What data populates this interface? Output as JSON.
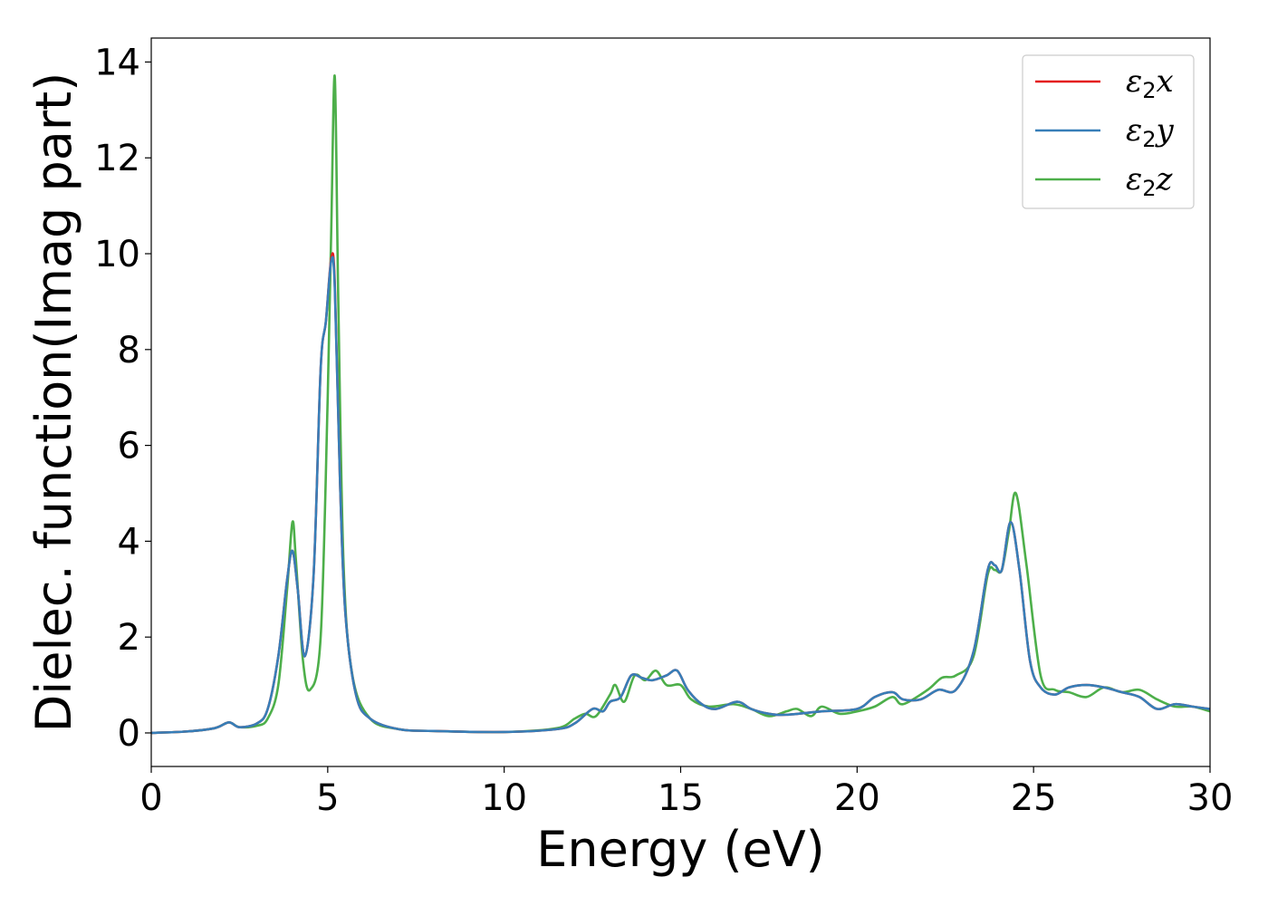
{
  "chart_data": {
    "type": "line",
    "xlabel": "Energy (eV)",
    "ylabel": "Dielec. function(Imag part)",
    "xlim": [
      0,
      30
    ],
    "ylim": [
      -0.7,
      14.5
    ],
    "xticks": [
      0,
      5,
      10,
      15,
      20,
      25,
      30
    ],
    "yticks": [
      0,
      2,
      4,
      6,
      8,
      10,
      12,
      14
    ],
    "grid": false,
    "legend_position": "top-right",
    "series": [
      {
        "name": "ε2x",
        "legend_base": "ε",
        "legend_sub": "2",
        "legend_suffix": "x",
        "color": "#e41a1c",
        "x": [
          0,
          1,
          1.8,
          2.2,
          2.5,
          3,
          3.3,
          3.6,
          3.85,
          4,
          4.15,
          4.35,
          4.6,
          4.8,
          4.95,
          5.1,
          5.2,
          5.35,
          5.5,
          5.8,
          6.2,
          7,
          8,
          10,
          11.5,
          12,
          12.5,
          12.8,
          13,
          13.3,
          13.6,
          13.9,
          14.2,
          14.6,
          14.9,
          15.2,
          15.6,
          16,
          16.6,
          17,
          17.5,
          18,
          19,
          20,
          20.5,
          21,
          21.3,
          21.8,
          22.3,
          22.8,
          23.3,
          23.7,
          23.9,
          24.1,
          24.35,
          24.6,
          24.9,
          25.2,
          25.6,
          26,
          26.5,
          27,
          27.5,
          28,
          28.5,
          29,
          29.5,
          30
        ],
        "y": [
          0,
          0.03,
          0.1,
          0.22,
          0.12,
          0.2,
          0.5,
          1.6,
          3.2,
          3.8,
          3.0,
          1.6,
          3.3,
          7.6,
          8.6,
          9.9,
          9.4,
          5.2,
          2.5,
          0.8,
          0.3,
          0.08,
          0.04,
          0.02,
          0.08,
          0.2,
          0.5,
          0.45,
          0.65,
          0.75,
          1.2,
          1.15,
          1.1,
          1.2,
          1.3,
          0.9,
          0.6,
          0.5,
          0.65,
          0.5,
          0.4,
          0.38,
          0.45,
          0.5,
          0.75,
          0.85,
          0.7,
          0.7,
          0.9,
          0.9,
          1.7,
          3.4,
          3.5,
          3.4,
          4.4,
          3.4,
          1.5,
          0.95,
          0.8,
          0.95,
          1.0,
          0.95,
          0.85,
          0.75,
          0.5,
          0.6,
          0.55,
          0.5
        ]
      },
      {
        "name": "ε2y",
        "legend_base": "ε",
        "legend_sub": "2",
        "legend_suffix": "y",
        "color": "#377eb8",
        "x": [
          0,
          1,
          1.8,
          2.2,
          2.5,
          3,
          3.3,
          3.6,
          3.85,
          4,
          4.15,
          4.35,
          4.6,
          4.8,
          4.95,
          5.1,
          5.2,
          5.35,
          5.5,
          5.8,
          6.2,
          7,
          8,
          10,
          11.5,
          12,
          12.5,
          12.8,
          13,
          13.3,
          13.6,
          13.9,
          14.2,
          14.6,
          14.9,
          15.2,
          15.6,
          16,
          16.6,
          17,
          17.5,
          18,
          19,
          20,
          20.5,
          21,
          21.3,
          21.8,
          22.3,
          22.8,
          23.3,
          23.7,
          23.9,
          24.1,
          24.35,
          24.6,
          24.9,
          25.2,
          25.6,
          26,
          26.5,
          27,
          27.5,
          28,
          28.5,
          29,
          29.5,
          30
        ],
        "y": [
          0,
          0.03,
          0.1,
          0.22,
          0.12,
          0.2,
          0.5,
          1.6,
          3.2,
          3.8,
          3.0,
          1.6,
          3.3,
          7.6,
          8.6,
          9.85,
          9.3,
          5.2,
          2.5,
          0.8,
          0.3,
          0.08,
          0.04,
          0.02,
          0.08,
          0.2,
          0.5,
          0.45,
          0.65,
          0.75,
          1.2,
          1.15,
          1.1,
          1.2,
          1.3,
          0.9,
          0.6,
          0.5,
          0.65,
          0.5,
          0.4,
          0.38,
          0.45,
          0.5,
          0.75,
          0.85,
          0.7,
          0.7,
          0.9,
          0.9,
          1.7,
          3.4,
          3.5,
          3.4,
          4.4,
          3.4,
          1.5,
          0.95,
          0.8,
          0.95,
          1.0,
          0.95,
          0.85,
          0.75,
          0.5,
          0.6,
          0.55,
          0.5
        ]
      },
      {
        "name": "ε2z",
        "legend_base": "ε",
        "legend_sub": "2",
        "legend_suffix": "z",
        "color": "#4daf4a",
        "x": [
          0,
          1,
          1.8,
          2.2,
          2.5,
          3,
          3.3,
          3.6,
          3.85,
          4,
          4.1,
          4.3,
          4.5,
          4.8,
          5.0,
          5.1,
          5.2,
          5.3,
          5.45,
          5.7,
          6.2,
          7,
          8,
          10,
          11.5,
          12,
          12.3,
          12.6,
          13,
          13.15,
          13.4,
          13.7,
          14,
          14.3,
          14.6,
          15,
          15.3,
          15.8,
          16.5,
          17,
          17.5,
          18,
          18.3,
          18.7,
          19,
          19.5,
          20,
          20.5,
          21,
          21.3,
          22,
          22.4,
          22.8,
          23.3,
          23.7,
          23.9,
          24.1,
          24.3,
          24.5,
          24.8,
          25.2,
          25.6,
          26,
          26.5,
          27,
          27.5,
          28,
          28.5,
          29,
          29.5,
          30
        ],
        "y": [
          0,
          0.03,
          0.1,
          0.22,
          0.12,
          0.15,
          0.3,
          1.0,
          3.0,
          4.4,
          3.6,
          1.5,
          0.9,
          2.0,
          7.0,
          10.5,
          13.7,
          9.0,
          3.5,
          1.2,
          0.3,
          0.08,
          0.04,
          0.02,
          0.1,
          0.3,
          0.4,
          0.35,
          0.8,
          1.0,
          0.65,
          1.2,
          1.1,
          1.3,
          1.0,
          1.0,
          0.7,
          0.55,
          0.6,
          0.5,
          0.35,
          0.45,
          0.5,
          0.35,
          0.55,
          0.4,
          0.45,
          0.55,
          0.75,
          0.6,
          0.9,
          1.15,
          1.2,
          1.6,
          3.3,
          3.4,
          3.4,
          4.2,
          5.0,
          3.5,
          1.2,
          0.9,
          0.85,
          0.75,
          0.95,
          0.85,
          0.9,
          0.7,
          0.55,
          0.55,
          0.45
        ]
      }
    ]
  }
}
